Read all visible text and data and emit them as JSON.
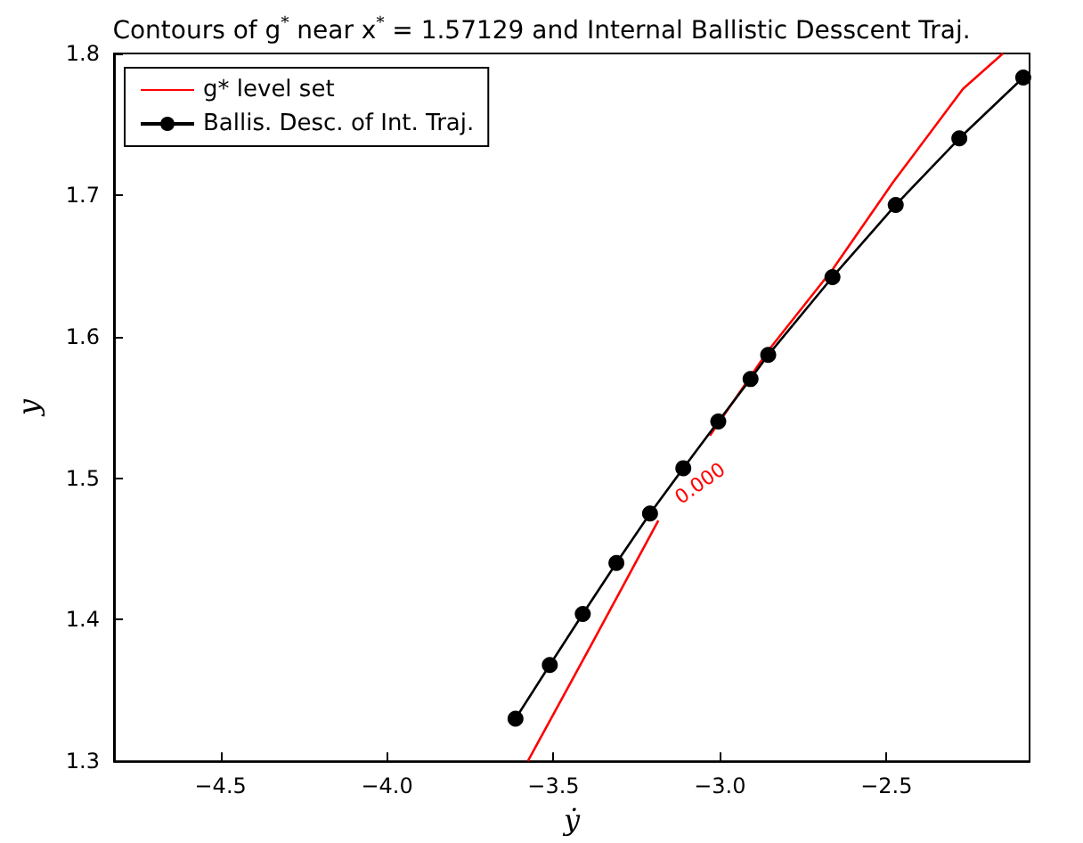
{
  "chart_data": {
    "type": "line",
    "title": "Contours of g$^{*}$ near x$^{*}$ = 1.57129 and Internal Ballistic Desscent Traj.",
    "xlabel": "ẏ",
    "ylabel": "y",
    "xlim": [
      -4.82,
      -2.07
    ],
    "xticks": [
      {
        "value": -4.5,
        "label": "−4.5"
      },
      {
        "value": -4,
        "label": "−4.0"
      },
      {
        "value": -3.5,
        "label": "−3.5"
      },
      {
        "value": -3,
        "label": "−3.0"
      },
      {
        "value": -2.5,
        "label": "−2.5"
      }
    ],
    "ylim": [
      1.3,
      1.8
    ],
    "yticks": [
      1.3,
      1.4,
      1.5,
      1.6,
      1.7,
      1.8
    ],
    "grid": false,
    "legend": "top left",
    "annotations": [
      "0.000"
    ],
    "series": [
      {
        "name": "g* level set",
        "color": "#ff0000",
        "marker": "none",
        "x": [
          -3.577,
          -3.38,
          -3.185,
          -3.11,
          -3.03,
          -2.855,
          -2.66,
          -2.48,
          -2.27,
          -2.15
        ],
        "values": [
          1.3,
          1.385,
          1.47,
          null,
          1.53,
          1.59,
          1.648,
          1.709,
          1.775,
          1.8
        ]
      },
      {
        "name": "Ballis. Desc. of Int. Traj.",
        "color": "#000000",
        "marker": "circle",
        "x": [
          -3.614,
          -3.511,
          -3.412,
          -3.311,
          -3.21,
          -3.11,
          -3.005,
          -2.908,
          -2.855,
          -2.662,
          -2.472,
          -2.281,
          -2.089
        ],
        "values": [
          1.33,
          1.368,
          1.404,
          1.44,
          1.475,
          1.507,
          1.54,
          1.57,
          1.587,
          1.642,
          1.693,
          1.74,
          1.783
        ]
      }
    ]
  }
}
